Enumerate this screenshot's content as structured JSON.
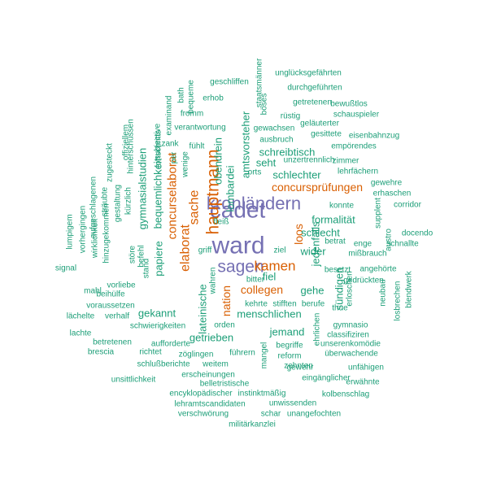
{
  "colors": {
    "purple": "#7570b3",
    "orange": "#d95f02",
    "teal": "#1b9e77"
  },
  "words": [
    {
      "text": "ward",
      "size": 30,
      "color": "purple"
    },
    {
      "text": "cadet",
      "size": 28,
      "color": "purple"
    },
    {
      "text": "kronländern",
      "size": 22,
      "color": "purple"
    },
    {
      "text": "sagen",
      "size": 21,
      "color": "purple"
    },
    {
      "text": "hauptmann",
      "size": 21,
      "color": "orange",
      "vertical": true
    },
    {
      "text": "kamen",
      "size": 17,
      "color": "orange"
    },
    {
      "text": "sache",
      "size": 16,
      "color": "orange",
      "vertical": true
    },
    {
      "text": "elaborat",
      "size": 16,
      "color": "orange",
      "vertical": true
    },
    {
      "text": "concurselaborat",
      "size": 15,
      "color": "orange",
      "vertical": true
    },
    {
      "text": "concursprüfungen",
      "size": 14,
      "color": "orange"
    },
    {
      "text": "nation",
      "size": 14,
      "color": "orange",
      "vertical": true
    },
    {
      "text": "collegen",
      "size": 14,
      "color": "orange"
    },
    {
      "text": "loos",
      "size": 14,
      "color": "orange",
      "vertical": true
    },
    {
      "text": "sündigen",
      "size": 13,
      "color": "teal",
      "vertical": true
    },
    {
      "text": "amtsvorsteher",
      "size": 13,
      "color": "teal",
      "vertical": true
    },
    {
      "text": "obendrein",
      "size": 13,
      "color": "teal",
      "vertical": true
    },
    {
      "text": "lombardei",
      "size": 13,
      "color": "teal",
      "vertical": true
    },
    {
      "text": "seht",
      "size": 13,
      "color": "teal"
    },
    {
      "text": "schreibtisch",
      "size": 13,
      "color": "teal"
    },
    {
      "text": "schlechter",
      "size": 13,
      "color": "teal"
    },
    {
      "text": "bequemlichkeit",
      "size": 13,
      "color": "teal",
      "vertical": true
    },
    {
      "text": "gymnasialstudien",
      "size": 13,
      "color": "teal",
      "vertical": true
    },
    {
      "text": "papiere",
      "size": 13,
      "color": "teal",
      "vertical": true
    },
    {
      "text": "formalität",
      "size": 13,
      "color": "teal"
    },
    {
      "text": "schlecht",
      "size": 13,
      "color": "teal"
    },
    {
      "text": "jedenfalls",
      "size": 13,
      "color": "teal",
      "vertical": true
    },
    {
      "text": "wider",
      "size": 13,
      "color": "teal"
    },
    {
      "text": "fiel",
      "size": 13,
      "color": "teal"
    },
    {
      "text": "gehe",
      "size": 13,
      "color": "teal"
    },
    {
      "text": "menschlichen",
      "size": 13,
      "color": "teal"
    },
    {
      "text": "gekannt",
      "size": 13,
      "color": "teal"
    },
    {
      "text": "lateinische",
      "size": 13,
      "color": "teal",
      "vertical": true
    },
    {
      "text": "jemand",
      "size": 13,
      "color": "teal"
    },
    {
      "text": "getrieben",
      "size": 13,
      "color": "teal"
    },
    {
      "text": "unglücksgefährten",
      "size": 10,
      "color": "teal"
    },
    {
      "text": "geschliffen",
      "size": 10,
      "color": "teal"
    },
    {
      "text": "staatsmänner",
      "size": 10,
      "color": "teal",
      "vertical": true
    },
    {
      "text": "durchgeführten",
      "size": 10,
      "color": "teal"
    },
    {
      "text": "böses",
      "size": 10,
      "color": "teal",
      "vertical": true
    },
    {
      "text": "getretenen",
      "size": 10,
      "color": "teal"
    },
    {
      "text": "bewußtlos",
      "size": 10,
      "color": "teal"
    },
    {
      "text": "erhob",
      "size": 10,
      "color": "teal"
    },
    {
      "text": "bath",
      "size": 10,
      "color": "teal",
      "vertical": true
    },
    {
      "text": "bequeme",
      "size": 10,
      "color": "teal",
      "vertical": true
    },
    {
      "text": "examinand",
      "size": 10,
      "color": "teal",
      "vertical": true
    },
    {
      "text": "hinterschüssen",
      "size": 10,
      "color": "teal",
      "vertical": true
    },
    {
      "text": "fortschritts",
      "size": 10,
      "color": "teal",
      "vertical": true
    },
    {
      "text": "fromm",
      "size": 10,
      "color": "teal"
    },
    {
      "text": "schauspieler",
      "size": 10,
      "color": "teal"
    },
    {
      "text": "rüstig",
      "size": 10,
      "color": "teal"
    },
    {
      "text": "geläuterter",
      "size": 10,
      "color": "teal"
    },
    {
      "text": "verantwortung",
      "size": 10,
      "color": "teal"
    },
    {
      "text": "gewachsen",
      "size": 10,
      "color": "teal"
    },
    {
      "text": "gesittete",
      "size": 10,
      "color": "teal"
    },
    {
      "text": "eisenbahnzug",
      "size": 10,
      "color": "teal"
    },
    {
      "text": "subjective",
      "size": 10,
      "color": "teal",
      "vertical": true
    },
    {
      "text": "offiziellem",
      "size": 10,
      "color": "teal",
      "vertical": true
    },
    {
      "text": "ausbruch",
      "size": 10,
      "color": "teal"
    },
    {
      "text": "zank",
      "size": 10,
      "color": "teal"
    },
    {
      "text": "fühlt",
      "size": 10,
      "color": "teal"
    },
    {
      "text": "empörendes",
      "size": 10,
      "color": "teal"
    },
    {
      "text": "unzertrennlich",
      "size": 10,
      "color": "teal"
    },
    {
      "text": "per",
      "size": 10,
      "color": "teal",
      "vertical": true
    },
    {
      "text": "zugesteckt",
      "size": 10,
      "color": "teal",
      "vertical": true
    },
    {
      "text": "zimmer",
      "size": 10,
      "color": "teal"
    },
    {
      "text": "wenige",
      "size": 10,
      "color": "teal",
      "vertical": true
    },
    {
      "text": "lehrfächern",
      "size": 10,
      "color": "teal"
    },
    {
      "text": "orts",
      "size": 10,
      "color": "teal"
    },
    {
      "text": "sträubte",
      "size": 10,
      "color": "teal",
      "vertical": true
    },
    {
      "text": "aufgeschlagenen",
      "size": 10,
      "color": "teal",
      "vertical": true
    },
    {
      "text": "gewehre",
      "size": 10,
      "color": "teal"
    },
    {
      "text": "kürzlich",
      "size": 10,
      "color": "teal",
      "vertical": true
    },
    {
      "text": "gestaltung",
      "size": 10,
      "color": "teal",
      "vertical": true
    },
    {
      "text": "erhaschen",
      "size": 10,
      "color": "teal"
    },
    {
      "text": "vorhergingen",
      "size": 10,
      "color": "teal",
      "vertical": true
    },
    {
      "text": "konnte",
      "size": 10,
      "color": "teal"
    },
    {
      "text": "supplent",
      "size": 10,
      "color": "teal",
      "vertical": true
    },
    {
      "text": "corridor",
      "size": 10,
      "color": "teal"
    },
    {
      "text": "fleiß",
      "size": 10,
      "color": "teal"
    },
    {
      "text": "lumpigem",
      "size": 10,
      "color": "teal",
      "vertical": true
    },
    {
      "text": "hinzugekommen",
      "size": 10,
      "color": "teal",
      "vertical": true
    },
    {
      "text": "wirklichkeit",
      "size": 10,
      "color": "teal",
      "vertical": true
    },
    {
      "text": "docendo",
      "size": 10,
      "color": "teal"
    },
    {
      "text": "austro",
      "size": 10,
      "color": "teal",
      "vertical": true
    },
    {
      "text": "betrat",
      "size": 10,
      "color": "teal"
    },
    {
      "text": "schnallte",
      "size": 10,
      "color": "teal"
    },
    {
      "text": "enge",
      "size": 10,
      "color": "teal"
    },
    {
      "text": "störe",
      "size": 10,
      "color": "teal",
      "vertical": true
    },
    {
      "text": "befehl",
      "size": 10,
      "color": "teal",
      "vertical": true
    },
    {
      "text": "mißbrauch",
      "size": 10,
      "color": "teal"
    },
    {
      "text": "griff",
      "size": 10,
      "color": "teal"
    },
    {
      "text": "ziel",
      "size": 10,
      "color": "teal"
    },
    {
      "text": "signal",
      "size": 10,
      "color": "teal"
    },
    {
      "text": "stand",
      "size": 10,
      "color": "teal",
      "vertical": true
    },
    {
      "text": "besetzt",
      "size": 10,
      "color": "teal"
    },
    {
      "text": "angehörte",
      "size": 10,
      "color": "teal"
    },
    {
      "text": "bitter",
      "size": 10,
      "color": "teal"
    },
    {
      "text": "gedrückten",
      "size": 10,
      "color": "teal"
    },
    {
      "text": "vorliebe",
      "size": 10,
      "color": "teal"
    },
    {
      "text": "mahl",
      "size": 10,
      "color": "teal"
    },
    {
      "text": "erloschen",
      "size": 10,
      "color": "teal",
      "vertical": true
    },
    {
      "text": "blendwerk",
      "size": 10,
      "color": "teal",
      "vertical": true
    },
    {
      "text": "beihülfe",
      "size": 10,
      "color": "teal"
    },
    {
      "text": "wahren",
      "size": 10,
      "color": "teal",
      "vertical": true
    },
    {
      "text": "neubau",
      "size": 10,
      "color": "teal",
      "vertical": true
    },
    {
      "text": "voraussetzen",
      "size": 10,
      "color": "teal"
    },
    {
      "text": "kehrte",
      "size": 10,
      "color": "teal"
    },
    {
      "text": "stifften",
      "size": 10,
      "color": "teal"
    },
    {
      "text": "berufe",
      "size": 10,
      "color": "teal"
    },
    {
      "text": "thue",
      "size": 10,
      "color": "teal"
    },
    {
      "text": "lächelte",
      "size": 10,
      "color": "teal"
    },
    {
      "text": "verhalf",
      "size": 10,
      "color": "teal"
    },
    {
      "text": "losbrechen",
      "size": 10,
      "color": "teal",
      "vertical": true
    },
    {
      "text": "schwierigkeiten",
      "size": 10,
      "color": "teal"
    },
    {
      "text": "orden",
      "size": 10,
      "color": "teal"
    },
    {
      "text": "gymnasio",
      "size": 10,
      "color": "teal"
    },
    {
      "text": "lachte",
      "size": 10,
      "color": "teal"
    },
    {
      "text": "classifiziren",
      "size": 10,
      "color": "teal"
    },
    {
      "text": "ehrlichen",
      "size": 10,
      "color": "teal",
      "vertical": true
    },
    {
      "text": "betretenen",
      "size": 10,
      "color": "teal"
    },
    {
      "text": "aufforderte",
      "size": 10,
      "color": "teal"
    },
    {
      "text": "begriffe",
      "size": 10,
      "color": "teal"
    },
    {
      "text": "unserenkomödie",
      "size": 10,
      "color": "teal"
    },
    {
      "text": "brescia",
      "size": 10,
      "color": "teal"
    },
    {
      "text": "richtet",
      "size": 10,
      "color": "teal"
    },
    {
      "text": "zöglingen",
      "size": 10,
      "color": "teal"
    },
    {
      "text": "führern",
      "size": 10,
      "color": "teal"
    },
    {
      "text": "mangel",
      "size": 10,
      "color": "teal",
      "vertical": true
    },
    {
      "text": "reform",
      "size": 10,
      "color": "teal"
    },
    {
      "text": "überwachende",
      "size": 10,
      "color": "teal"
    },
    {
      "text": "zehnten",
      "size": 10,
      "color": "teal"
    },
    {
      "text": "schlußberichte",
      "size": 10,
      "color": "teal"
    },
    {
      "text": "weitem",
      "size": 10,
      "color": "teal"
    },
    {
      "text": "gewehr",
      "size": 10,
      "color": "teal"
    },
    {
      "text": "unfähigen",
      "size": 10,
      "color": "teal"
    },
    {
      "text": "erscheinungen",
      "size": 10,
      "color": "teal"
    },
    {
      "text": "eingänglicher",
      "size": 10,
      "color": "teal"
    },
    {
      "text": "unsittlichkeit",
      "size": 10,
      "color": "teal"
    },
    {
      "text": "erwähnte",
      "size": 10,
      "color": "teal"
    },
    {
      "text": "belletristische",
      "size": 10,
      "color": "teal"
    },
    {
      "text": "encyklopädischer",
      "size": 10,
      "color": "teal"
    },
    {
      "text": "instinktmäßig",
      "size": 10,
      "color": "teal"
    },
    {
      "text": "kolbenschlag",
      "size": 10,
      "color": "teal"
    },
    {
      "text": "lehramtscandidaten",
      "size": 10,
      "color": "teal"
    },
    {
      "text": "unwissenden",
      "size": 10,
      "color": "teal"
    },
    {
      "text": "verschwörung",
      "size": 10,
      "color": "teal"
    },
    {
      "text": "schar",
      "size": 10,
      "color": "teal"
    },
    {
      "text": "unangefochten",
      "size": 10,
      "color": "teal"
    },
    {
      "text": "militärkanzlei",
      "size": 10,
      "color": "teal"
    }
  ]
}
